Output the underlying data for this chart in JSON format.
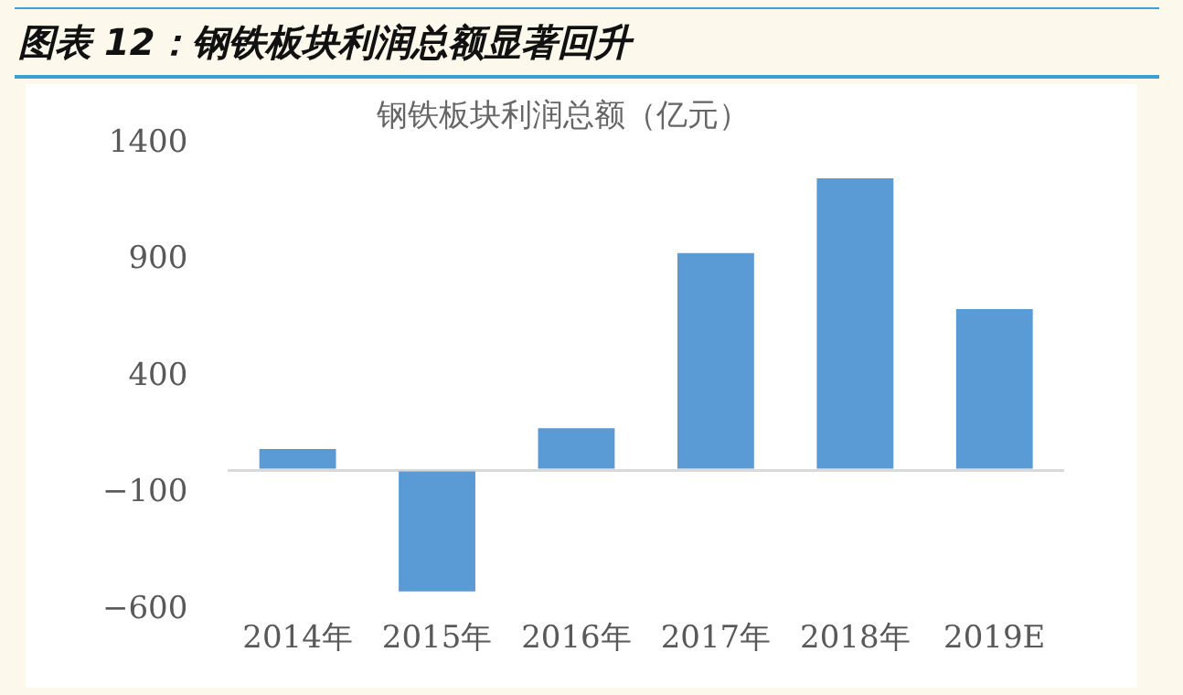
{
  "chart_data": {
    "type": "bar",
    "title": "图表 12：钢铁板块利润总额显著回升",
    "subtitle": "钢铁板块利润总额（亿元）",
    "categories": [
      "2014年",
      "2015年",
      "2016年",
      "2017年",
      "2018年",
      "2019E"
    ],
    "series": [
      {
        "color": "#5b9bd5",
        "values": [
          90,
          -520,
          180,
          930,
          1250,
          690
        ]
      }
    ],
    "ylim": [
      -600,
      1400
    ],
    "yticks": [
      -600,
      -100,
      400,
      900,
      1400
    ],
    "grid": false,
    "legend": false
  }
}
